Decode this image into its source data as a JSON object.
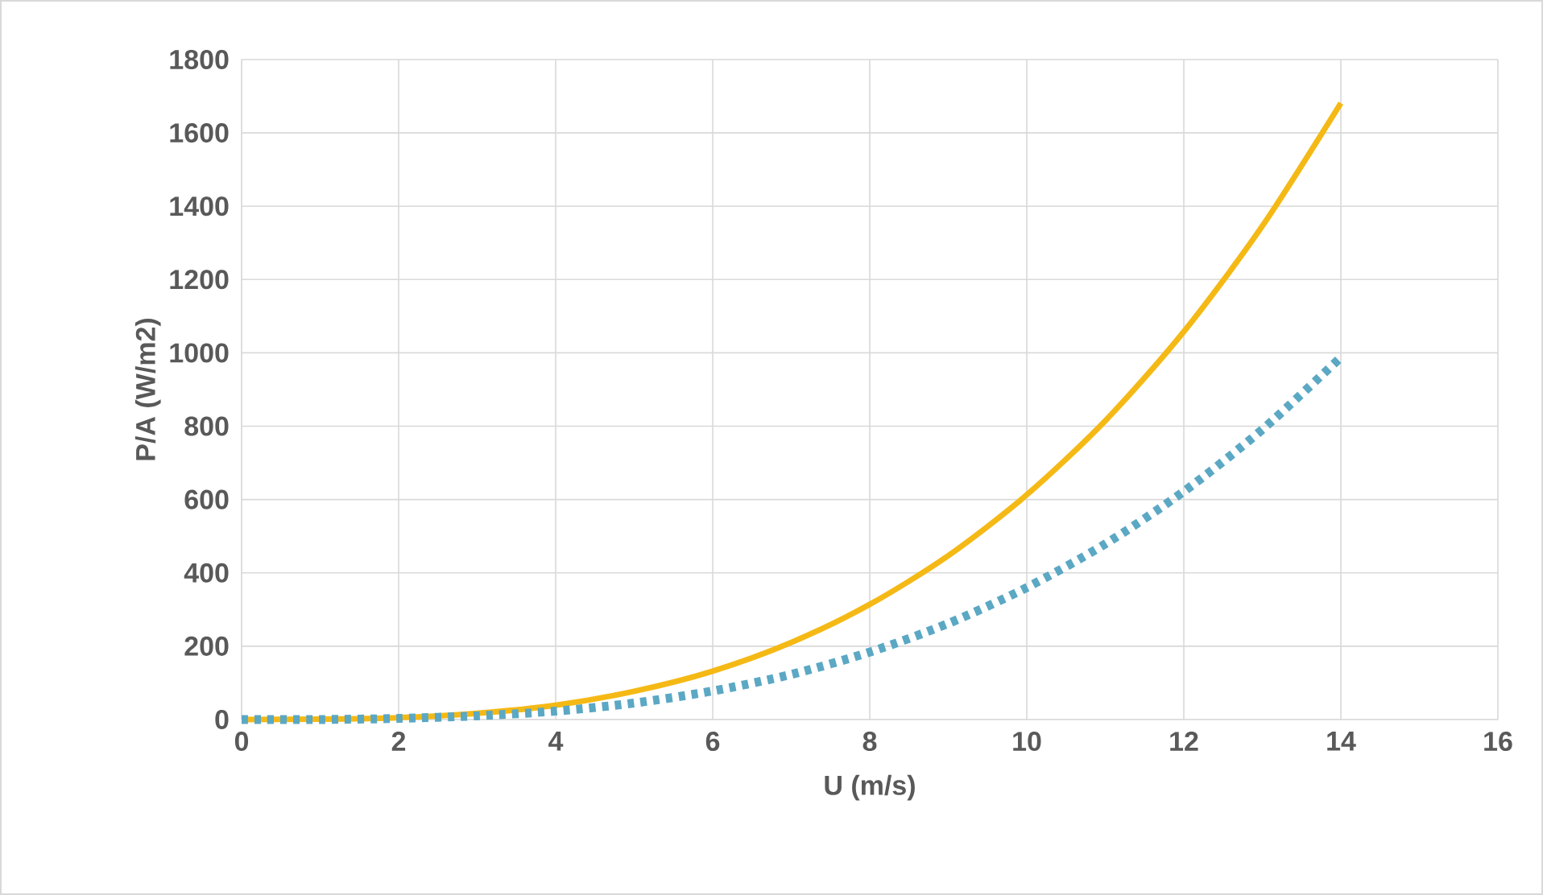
{
  "chart_data": {
    "type": "line",
    "xlabel": "U (m/s)",
    "ylabel": "P/A (W/m2)",
    "x": [
      0,
      1,
      2,
      3,
      4,
      5,
      6,
      7,
      8,
      9,
      10,
      11,
      12,
      13,
      14
    ],
    "series": [
      {
        "color": "#f5b915",
        "line_style": "solid",
        "values": [
          0,
          1,
          5,
          17,
          39,
          77,
          132,
          210,
          314,
          447,
          613,
          815,
          1058,
          1346,
          1681
        ]
      },
      {
        "color": "#5ba8c4",
        "line_style": "dotted",
        "values": [
          0,
          0,
          3,
          10,
          23,
          45,
          78,
          123,
          184,
          262,
          360,
          479,
          622,
          791,
          988
        ]
      }
    ],
    "xlim": [
      0,
      16
    ],
    "ylim": [
      0,
      1800
    ],
    "xticks": [
      0,
      2,
      4,
      6,
      8,
      10,
      12,
      14,
      16
    ],
    "yticks": [
      0,
      200,
      400,
      600,
      800,
      1000,
      1200,
      1400,
      1600,
      1800
    ],
    "grid": true,
    "marker": "none"
  }
}
